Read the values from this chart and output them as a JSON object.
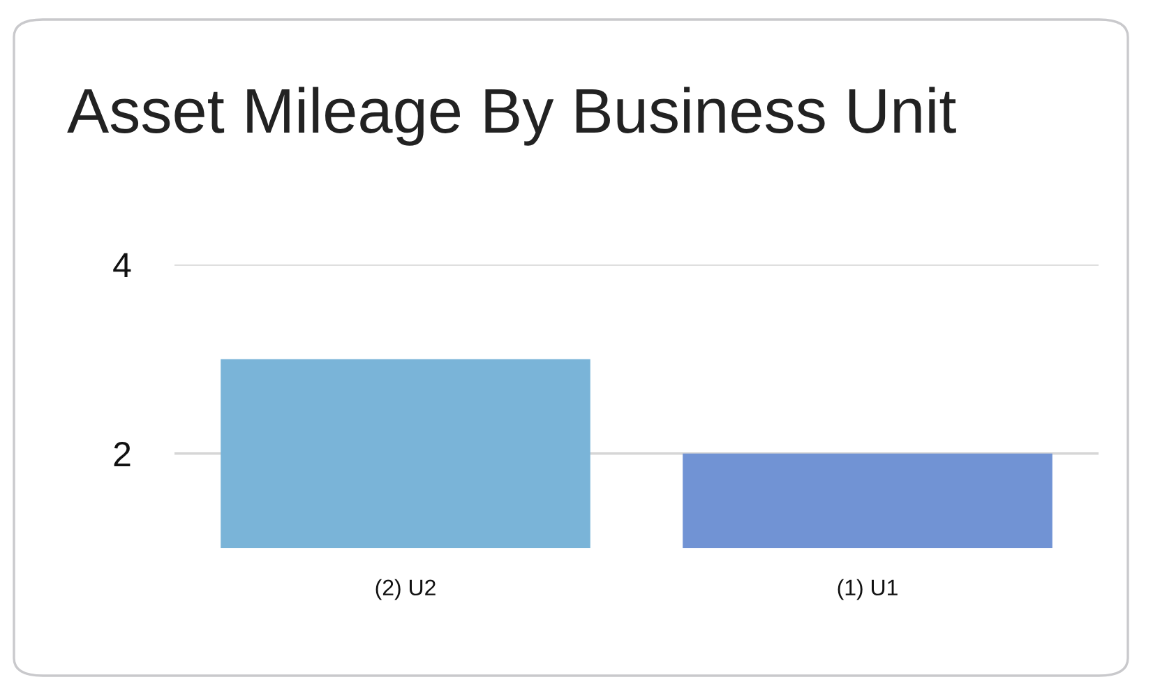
{
  "chart_data": {
    "type": "bar",
    "title": "Asset Mileage By Business Unit",
    "categories": [
      "(2) U2",
      "(1) U1"
    ],
    "values": [
      3,
      2
    ],
    "colors": [
      "#7ab4d8",
      "#7193d4"
    ],
    "ylim": [
      1,
      4
    ],
    "yticks": [
      2,
      4
    ],
    "grid": "y"
  }
}
